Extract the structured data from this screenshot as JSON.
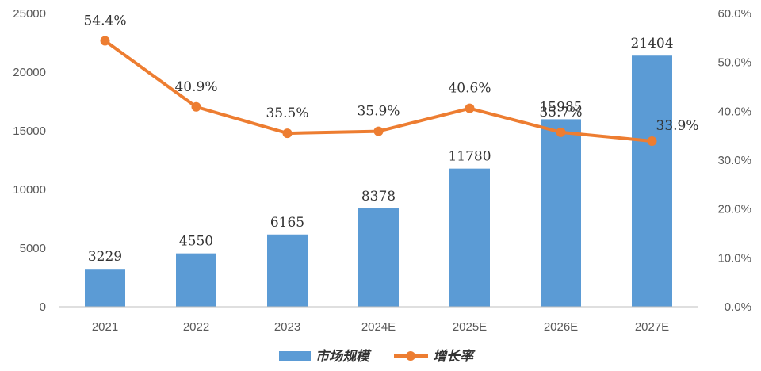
{
  "colors": {
    "bar": "#5B9BD5",
    "line": "#ED7D31",
    "axis": "#BFBFBF",
    "text": "#595959"
  },
  "chart_data": {
    "type": "bar+line",
    "categories": [
      "2021",
      "2022",
      "2023",
      "2024E",
      "2025E",
      "2026E",
      "2027E"
    ],
    "series": [
      {
        "name": "市场规模",
        "type": "bar",
        "axis": "left",
        "values": [
          3229,
          4550,
          6165,
          8378,
          11780,
          15985,
          21404
        ],
        "labels": [
          "3229",
          "4550",
          "6165",
          "8378",
          "11780",
          "15985",
          "21404"
        ]
      },
      {
        "name": "增长率",
        "type": "line",
        "axis": "right",
        "values": [
          54.4,
          40.9,
          35.5,
          35.9,
          40.6,
          35.7,
          33.9
        ],
        "labels": [
          "54.4%",
          "40.9%",
          "35.5%",
          "35.9%",
          "40.6%",
          "35.7%",
          "33.9%"
        ]
      }
    ],
    "y_left": {
      "min": 0,
      "max": 25000,
      "ticks": [
        "0",
        "5000",
        "10000",
        "15000",
        "20000",
        "25000"
      ]
    },
    "y_right": {
      "min": 0,
      "max": 60,
      "ticks": [
        "0.0%",
        "10.0%",
        "20.0%",
        "30.0%",
        "40.0%",
        "50.0%",
        "60.0%"
      ]
    },
    "grid": false,
    "legend": {
      "position": "bottom",
      "items": [
        "市场规模",
        "增长率"
      ]
    }
  }
}
